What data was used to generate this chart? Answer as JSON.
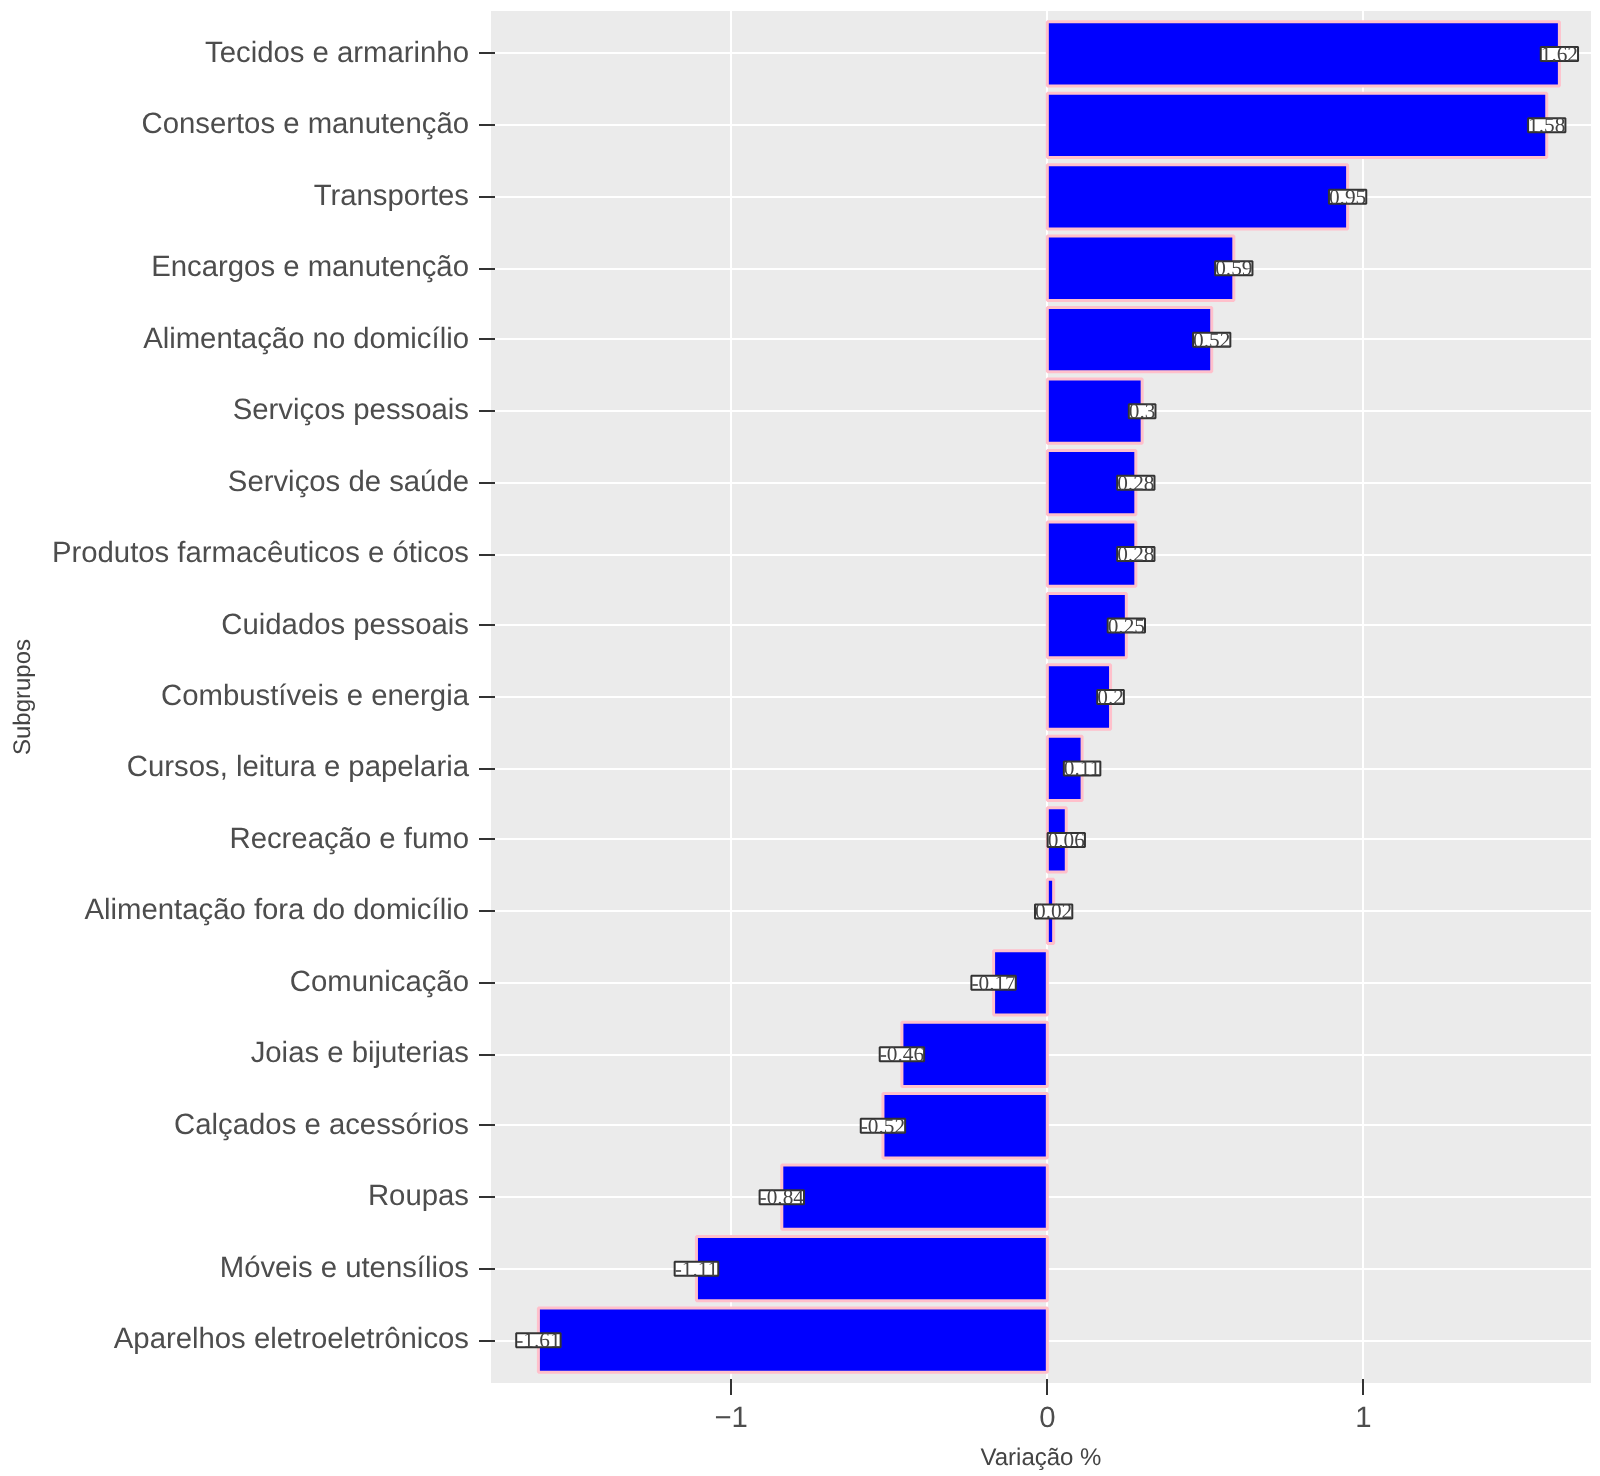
{
  "chart_data": {
    "type": "bar",
    "orientation": "horizontal",
    "xlabel": "Variação %",
    "ylabel": "Subgrupos",
    "categories": [
      "Tecidos e armarinho",
      "Consertos e manutenção",
      "Transportes",
      "Encargos e manutenção",
      "Alimentação no domicílio",
      "Serviços pessoais",
      "Serviços de saúde",
      "Produtos farmacêuticos e óticos",
      "Cuidados pessoais",
      "Combustíveis e energia",
      "Cursos, leitura e papelaria",
      "Recreação e fumo",
      "Alimentação fora do domicílio",
      "Comunicação",
      "Joias e bijuterias",
      "Calçados e acessórios",
      "Roupas",
      "Móveis e utensílios",
      "Aparelhos eletroeletrônicos"
    ],
    "values": [
      1.62,
      1.58,
      0.95,
      0.59,
      0.52,
      0.3,
      0.28,
      0.28,
      0.25,
      0.2,
      0.11,
      0.06,
      0.02,
      -0.17,
      -0.46,
      -0.52,
      -0.84,
      -1.11,
      -1.61
    ],
    "color": "#0000ff",
    "data_labels": true,
    "grid": true,
    "xlim": [
      -1.76,
      1.72
    ],
    "xticks": [
      -1,
      0,
      1
    ]
  }
}
